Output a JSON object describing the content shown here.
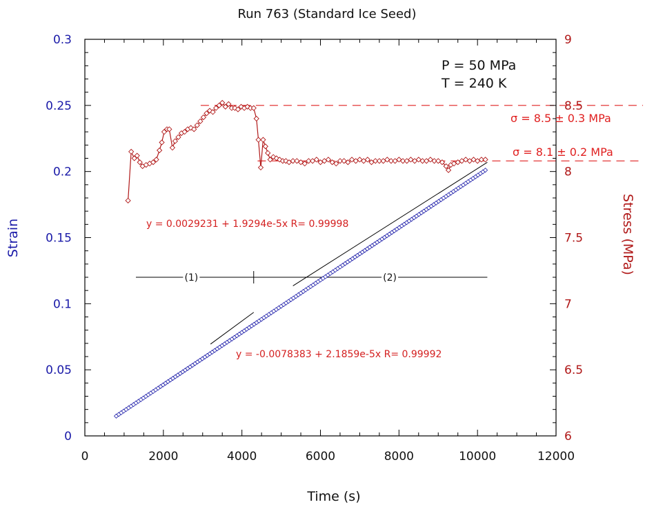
{
  "chart_data": {
    "type": "line",
    "title": "Run 763 (Standard Ice Seed)",
    "xlabel": "Time (s)",
    "ylabel_left": "Strain",
    "ylabel_right": "Stress (MPa)",
    "xlim": [
      0,
      12000
    ],
    "ylim_left": [
      0,
      0.3
    ],
    "ylim_right": [
      6,
      9
    ],
    "x_ticks": [
      "0",
      "2000",
      "4000",
      "6000",
      "8000",
      "10000",
      "12000"
    ],
    "x_tick_values": [
      0,
      2000,
      4000,
      6000,
      8000,
      10000,
      12000
    ],
    "left_ticks": [
      "0",
      "0.05",
      "0.1",
      "0.15",
      "0.2",
      "0.25",
      "0.3"
    ],
    "left_tick_values": [
      0,
      0.05,
      0.1,
      0.15,
      0.2,
      0.25,
      0.3
    ],
    "right_ticks": [
      "6",
      "6.5",
      "7",
      "7.5",
      "8",
      "8.5",
      "9"
    ],
    "right_tick_values": [
      6,
      6.5,
      7,
      7.5,
      8,
      8.5,
      9
    ],
    "colors": {
      "strain": "#1a1aa8",
      "stress": "#b01818",
      "annotation": "#e02020",
      "fit": "#000000"
    },
    "series": [
      {
        "name": "Strain",
        "axis": "left",
        "marker": "diamond",
        "t_start": 800,
        "t_end": 10200,
        "strain_start": 0.015,
        "strain_end": 0.201
      },
      {
        "name": "Stress",
        "axis": "right",
        "marker": "diamond",
        "points": [
          [
            1100,
            7.78
          ],
          [
            1180,
            8.15
          ],
          [
            1260,
            8.1
          ],
          [
            1330,
            8.12
          ],
          [
            1400,
            8.07
          ],
          [
            1470,
            8.04
          ],
          [
            1560,
            8.05
          ],
          [
            1650,
            8.06
          ],
          [
            1740,
            8.07
          ],
          [
            1820,
            8.09
          ],
          [
            1900,
            8.16
          ],
          [
            1960,
            8.22
          ],
          [
            2020,
            8.3
          ],
          [
            2090,
            8.32
          ],
          [
            2150,
            8.32
          ],
          [
            2230,
            8.18
          ],
          [
            2300,
            8.23
          ],
          [
            2380,
            8.26
          ],
          [
            2460,
            8.29
          ],
          [
            2540,
            8.3
          ],
          [
            2620,
            8.32
          ],
          [
            2700,
            8.33
          ],
          [
            2780,
            8.32
          ],
          [
            2860,
            8.35
          ],
          [
            2940,
            8.38
          ],
          [
            3020,
            8.41
          ],
          [
            3100,
            8.44
          ],
          [
            3180,
            8.46
          ],
          [
            3260,
            8.45
          ],
          [
            3340,
            8.48
          ],
          [
            3420,
            8.5
          ],
          [
            3500,
            8.52
          ],
          [
            3580,
            8.49
          ],
          [
            3660,
            8.51
          ],
          [
            3740,
            8.48
          ],
          [
            3820,
            8.48
          ],
          [
            3900,
            8.47
          ],
          [
            3980,
            8.49
          ],
          [
            4060,
            8.48
          ],
          [
            4140,
            8.49
          ],
          [
            4220,
            8.48
          ],
          [
            4300,
            8.48
          ],
          [
            4370,
            8.4
          ],
          [
            4420,
            8.24
          ],
          [
            4480,
            8.03
          ],
          [
            4540,
            8.24
          ],
          [
            4600,
            8.19
          ],
          [
            4660,
            8.14
          ],
          [
            4720,
            8.09
          ],
          [
            4800,
            8.11
          ],
          [
            4880,
            8.1
          ],
          [
            4960,
            8.09
          ],
          [
            5040,
            8.08
          ],
          [
            5120,
            8.08
          ],
          [
            5200,
            8.07
          ],
          [
            5300,
            8.08
          ],
          [
            5400,
            8.08
          ],
          [
            5500,
            8.07
          ],
          [
            5600,
            8.06
          ],
          [
            5700,
            8.08
          ],
          [
            5800,
            8.08
          ],
          [
            5900,
            8.09
          ],
          [
            6000,
            8.07
          ],
          [
            6100,
            8.08
          ],
          [
            6200,
            8.09
          ],
          [
            6300,
            8.07
          ],
          [
            6400,
            8.06
          ],
          [
            6500,
            8.08
          ],
          [
            6600,
            8.08
          ],
          [
            6700,
            8.07
          ],
          [
            6800,
            8.09
          ],
          [
            6900,
            8.08
          ],
          [
            7000,
            8.09
          ],
          [
            7100,
            8.08
          ],
          [
            7200,
            8.09
          ],
          [
            7300,
            8.07
          ],
          [
            7400,
            8.08
          ],
          [
            7500,
            8.08
          ],
          [
            7600,
            8.08
          ],
          [
            7700,
            8.09
          ],
          [
            7800,
            8.08
          ],
          [
            7900,
            8.08
          ],
          [
            8000,
            8.09
          ],
          [
            8100,
            8.08
          ],
          [
            8200,
            8.08
          ],
          [
            8300,
            8.09
          ],
          [
            8400,
            8.08
          ],
          [
            8500,
            8.09
          ],
          [
            8600,
            8.08
          ],
          [
            8700,
            8.08
          ],
          [
            8800,
            8.09
          ],
          [
            8900,
            8.08
          ],
          [
            9000,
            8.08
          ],
          [
            9100,
            8.07
          ],
          [
            9200,
            8.04
          ],
          [
            9260,
            8.01
          ],
          [
            9320,
            8.05
          ],
          [
            9400,
            8.06
          ],
          [
            9500,
            8.07
          ],
          [
            9600,
            8.08
          ],
          [
            9700,
            8.09
          ],
          [
            9800,
            8.08
          ],
          [
            9900,
            8.09
          ],
          [
            10000,
            8.08
          ],
          [
            10100,
            8.09
          ],
          [
            10200,
            8.09
          ]
        ]
      }
    ],
    "fits": [
      {
        "label": "y = 0.0029231 + 1.9294e-5x   R= 0.99998",
        "intercept": 0.0029231,
        "slope": 1.9294e-05,
        "t_from": 5300,
        "t_to": 10250
      },
      {
        "label": "y = -0.0078383 + 2.1859e-5x   R= 0.99992",
        "intercept": -0.0078383,
        "slope": 2.1859e-05,
        "t_from": 3200,
        "t_to": 4300
      }
    ],
    "stress_levels": [
      {
        "label": "σ = 8.5 ± 0.3 MPa",
        "value": 8.5,
        "t_from": 2950
      },
      {
        "label": "σ = 8.1 ± 0.2 MPa",
        "value": 8.08,
        "t_from": 4400
      }
    ],
    "segments": [
      {
        "label": "(1)",
        "t_from": 1300,
        "t_to": 4300
      },
      {
        "label": "(2)",
        "t_from": 4300,
        "t_to": 10250
      }
    ],
    "segment_strain_level": 0.12,
    "conditions": [
      "P = 50 MPa",
      "T = 240 K"
    ]
  }
}
